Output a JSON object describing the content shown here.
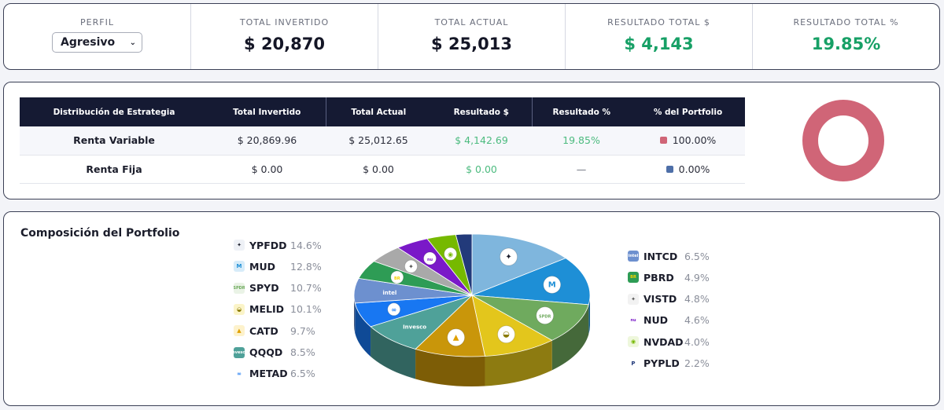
{
  "summary": {
    "profile_label": "PERFIL",
    "profile_value": "Agresivo",
    "invested_label": "TOTAL INVERTIDO",
    "invested_value": "$ 20,870",
    "current_label": "TOTAL ACTUAL",
    "current_value": "$ 25,013",
    "result_label": "RESULTADO TOTAL $",
    "result_value": "$ 4,143",
    "result_pct_label": "RESULTADO TOTAL %",
    "result_pct_value": "19.85%"
  },
  "strategy": {
    "headers": [
      "Distribución de Estrategia",
      "Total Invertido",
      "Total Actual",
      "Resultado $",
      "Resultado %",
      "% del Portfolio"
    ],
    "rows": [
      {
        "name": "Renta Variable",
        "invested": "$ 20,869.96",
        "current": "$ 25,012.65",
        "result": "$ 4,142.69",
        "result_pct": "19.85%",
        "share": "100.00%",
        "color": "#d06577"
      },
      {
        "name": "Renta Fija",
        "invested": "$ 0.00",
        "current": "$ 0.00",
        "result": "$ 0.00",
        "result_pct": "—",
        "share": "0.00%",
        "color": "#4e6fa8"
      }
    ],
    "donut": {
      "variable_share": 100.0,
      "fixed_share": 0.0
    }
  },
  "composition": {
    "title": "Composición del Portfolio",
    "left_legend": [
      {
        "ticker": "YPFDD",
        "pct": "14.6%",
        "icon": "ypf-logo-icon",
        "color": "#7fb6dd"
      },
      {
        "ticker": "MUD",
        "pct": "12.8%",
        "icon": "mercadolibre-m-icon",
        "color": "#1e8fd6"
      },
      {
        "ticker": "SPYD",
        "pct": "10.7%",
        "icon": "spdr-icon",
        "color": "#6faa5e"
      },
      {
        "ticker": "MELID",
        "pct": "10.1%",
        "icon": "handshake-icon",
        "color": "#e3c61c"
      },
      {
        "ticker": "CATD",
        "pct": "9.7%",
        "icon": "caterpillar-triangle-icon",
        "color": "#c9960a"
      },
      {
        "ticker": "QQQD",
        "pct": "8.5%",
        "icon": "invesco-icon",
        "color": "#4fa199"
      },
      {
        "ticker": "METAD",
        "pct": "6.5%",
        "icon": "meta-infinity-icon",
        "color": "#1877f2"
      }
    ],
    "right_legend": [
      {
        "ticker": "INTCD",
        "pct": "6.5%",
        "icon": "intel-icon",
        "color": "#6d90cf"
      },
      {
        "ticker": "PBRD",
        "pct": "4.9%",
        "icon": "petrobras-br-icon",
        "color": "#2e9c55"
      },
      {
        "ticker": "VISTD",
        "pct": "4.8%",
        "icon": "vista-star-icon",
        "color": "#a9a9a9"
      },
      {
        "ticker": "NUD",
        "pct": "4.6%",
        "icon": "nubank-nu-icon",
        "color": "#7a19c8"
      },
      {
        "ticker": "NVDAD",
        "pct": "4.0%",
        "icon": "nvidia-eye-icon",
        "color": "#76b900"
      },
      {
        "ticker": "PYPLD",
        "pct": "2.2%",
        "icon": "paypal-p-icon",
        "color": "#223a7a"
      }
    ],
    "icon_text": {
      "spyd": "SPDR",
      "intcd": "intel",
      "pbrd": "BR",
      "nud": "nu",
      "qqqd": "Invesco"
    }
  },
  "chart_data": {
    "type": "pie",
    "title": "Composición del Portfolio",
    "categories": [
      "YPFDD",
      "MUD",
      "SPYD",
      "MELID",
      "CATD",
      "QQQD",
      "METAD",
      "INTCD",
      "PBRD",
      "VISTD",
      "NUD",
      "NVDAD",
      "PYPLD"
    ],
    "values": [
      14.6,
      12.8,
      10.7,
      10.1,
      9.7,
      8.5,
      6.5,
      6.5,
      4.9,
      4.8,
      4.6,
      4.0,
      2.2
    ],
    "colors": [
      "#7fb6dd",
      "#1e8fd6",
      "#6faa5e",
      "#e3c61c",
      "#c9960a",
      "#4fa199",
      "#1877f2",
      "#6d90cf",
      "#2e9c55",
      "#a9a9a9",
      "#7a19c8",
      "#76b900",
      "#223a7a"
    ],
    "style": "3d-tilted"
  }
}
